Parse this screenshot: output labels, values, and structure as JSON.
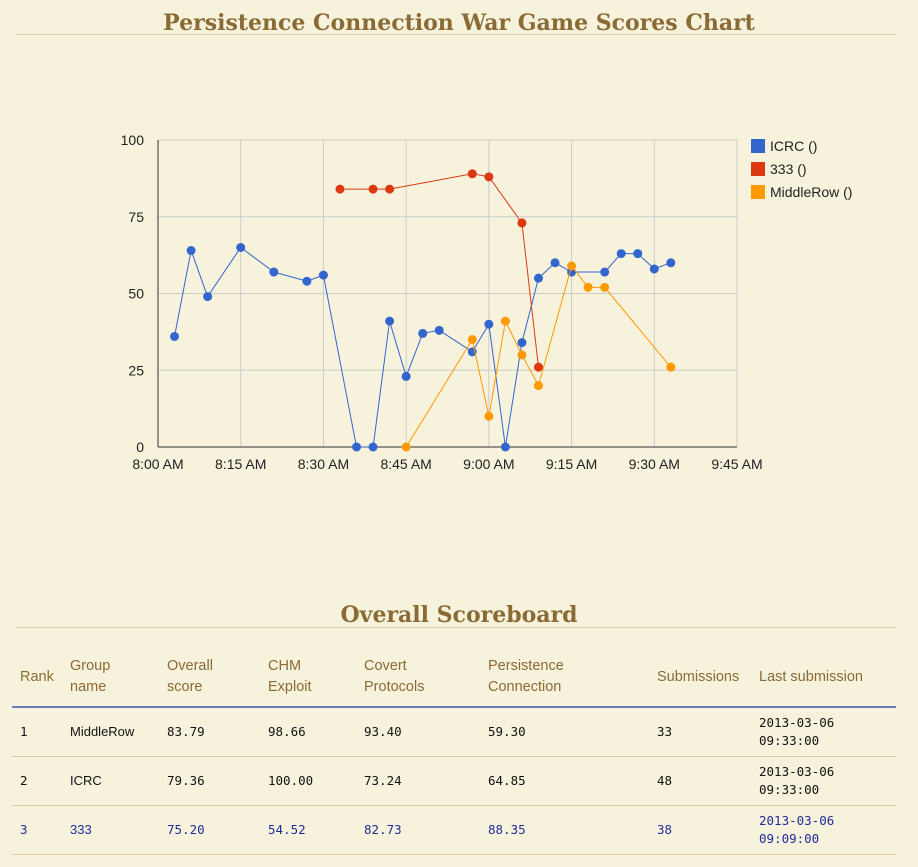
{
  "page": {
    "chart_title": "Persistence Connection War Game Scores Chart",
    "board_title": "Overall Scoreboard"
  },
  "chart_data": {
    "type": "line",
    "title": "Persistence Connection War Game Scores Chart",
    "xlabel": "",
    "ylabel": "",
    "ylim": [
      0,
      100
    ],
    "xlim": [
      "8:00 AM",
      "9:45 AM"
    ],
    "x_ticks": [
      "8:00 AM",
      "8:15 AM",
      "8:30 AM",
      "8:45 AM",
      "9:00 AM",
      "9:15 AM",
      "9:30 AM",
      "9:45 AM"
    ],
    "y_ticks": [
      "0",
      "25",
      "50",
      "75",
      "100"
    ],
    "grid": true,
    "legend_position": "right",
    "series": [
      {
        "name": "ICRC ()",
        "color": "#3366cc",
        "points": [
          [
            "8:03 AM",
            36
          ],
          [
            "8:06 AM",
            64
          ],
          [
            "8:09 AM",
            49
          ],
          [
            "8:15 AM",
            65
          ],
          [
            "8:21 AM",
            57
          ],
          [
            "8:27 AM",
            54
          ],
          [
            "8:30 AM",
            56
          ],
          [
            "8:36 AM",
            0
          ],
          [
            "8:39 AM",
            0
          ],
          [
            "8:42 AM",
            41
          ],
          [
            "8:45 AM",
            23
          ],
          [
            "8:48 AM",
            37
          ],
          [
            "8:51 AM",
            38
          ],
          [
            "8:57 AM",
            31
          ],
          [
            "9:00 AM",
            40
          ],
          [
            "9:03 AM",
            0
          ],
          [
            "9:06 AM",
            34
          ],
          [
            "9:09 AM",
            55
          ],
          [
            "9:12 AM",
            60
          ],
          [
            "9:15 AM",
            57
          ],
          [
            "9:21 AM",
            57
          ],
          [
            "9:24 AM",
            63
          ],
          [
            "9:27 AM",
            63
          ],
          [
            "9:30 AM",
            58
          ],
          [
            "9:33 AM",
            60
          ]
        ]
      },
      {
        "name": "333 ()",
        "color": "#dc3912",
        "points": [
          [
            "8:33 AM",
            84
          ],
          [
            "8:39 AM",
            84
          ],
          [
            "8:42 AM",
            84
          ],
          [
            "8:57 AM",
            89
          ],
          [
            "9:00 AM",
            88
          ],
          [
            "9:06 AM",
            73
          ],
          [
            "9:09 AM",
            26
          ]
        ]
      },
      {
        "name": "MiddleRow ()",
        "color": "#ff9900",
        "points": [
          [
            "8:45 AM",
            0
          ],
          [
            "8:57 AM",
            35
          ],
          [
            "9:00 AM",
            10
          ],
          [
            "9:03 AM",
            41
          ],
          [
            "9:06 AM",
            30
          ],
          [
            "9:09 AM",
            20
          ],
          [
            "9:15 AM",
            59
          ],
          [
            "9:18 AM",
            52
          ],
          [
            "9:21 AM",
            52
          ],
          [
            "9:33 AM",
            26
          ]
        ]
      }
    ]
  },
  "scoreboard": {
    "headers": [
      "Rank",
      "Group\nname",
      "Overall\nscore",
      "CHM\nExploit",
      "Covert\nProtocols",
      "Persistence\nConnection",
      "Submissions",
      "Last submission"
    ],
    "rows": [
      {
        "rank": "1",
        "group": "MiddleRow",
        "overall": "83.79",
        "chm": "98.66",
        "covert": "93.40",
        "persistence": "59.30",
        "submissions": "33",
        "last_date": "2013-03-06",
        "last_time": "09:33:00",
        "highlight": false
      },
      {
        "rank": "2",
        "group": "ICRC",
        "overall": "79.36",
        "chm": "100.00",
        "covert": "73.24",
        "persistence": "64.85",
        "submissions": "48",
        "last_date": "2013-03-06",
        "last_time": "09:33:00",
        "highlight": false
      },
      {
        "rank": "3",
        "group": "333",
        "overall": "75.20",
        "chm": "54.52",
        "covert": "82.73",
        "persistence": "88.35",
        "submissions": "38",
        "last_date": "2013-03-06",
        "last_time": "09:09:00",
        "highlight": true
      }
    ]
  }
}
